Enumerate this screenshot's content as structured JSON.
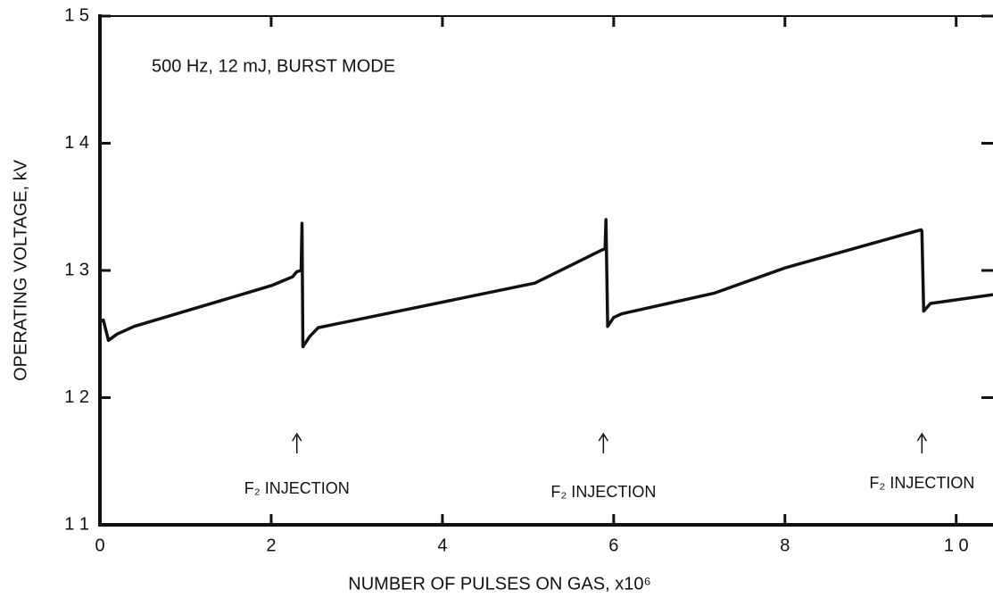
{
  "chart_data": {
    "type": "line",
    "title": "500 Hz, 12 mJ, BURST MODE",
    "x_label": "NUMBER OF PULSES ON GAS, x10⁶",
    "y_label": "OPERATING VOLTAGE, kV",
    "xlim": [
      0,
      10.43
    ],
    "ylim": [
      11,
      15
    ],
    "xticks": [
      0,
      2,
      4,
      6,
      8,
      {
        "value": 10,
        "label": "1 0"
      }
    ],
    "yticks": [
      {
        "value": 11,
        "label": "1 1"
      },
      {
        "value": 12,
        "label": "1 2"
      },
      {
        "value": 13,
        "label": "1 3"
      },
      {
        "value": 14,
        "label": "1 4"
      },
      {
        "value": 15,
        "label": "1 5"
      }
    ],
    "series": [
      {
        "color": "#111111",
        "x": [
          0,
          0.04,
          0.1,
          0.2,
          0.4,
          1.0,
          2.0,
          2.25,
          2.3,
          2.35,
          2.36,
          2.37,
          2.45,
          2.55,
          5.08,
          5.86,
          5.9,
          5.91,
          5.93,
          6.0,
          6.1,
          7.17,
          8.0,
          9.59,
          9.6,
          9.62,
          9.7,
          10.43
        ],
        "values": [
          12.6,
          12.61,
          12.45,
          12.5,
          12.56,
          12.68,
          12.88,
          12.95,
          12.99,
          13.0,
          13.37,
          12.4,
          12.48,
          12.55,
          12.9,
          13.16,
          13.17,
          13.4,
          12.56,
          12.63,
          12.66,
          12.82,
          13.02,
          13.32,
          13.31,
          12.68,
          12.74,
          12.81
        ]
      }
    ],
    "annotations": [
      {
        "text": "F₂ INJECTION",
        "x": 2.3
      },
      {
        "text": "F₂ INJECTION",
        "x": 5.88
      },
      {
        "text": "F₂ INJECTION",
        "x": 9.6
      }
    ]
  }
}
